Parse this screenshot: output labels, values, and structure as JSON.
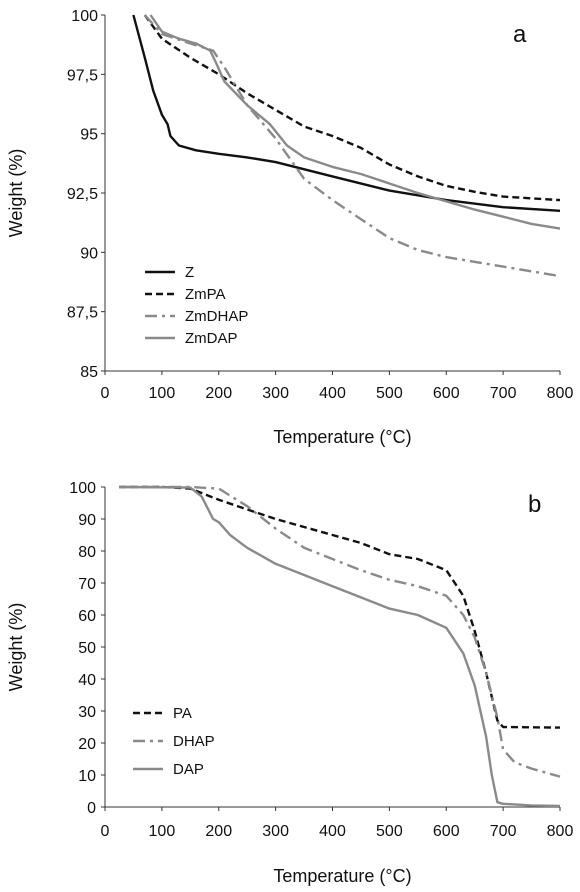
{
  "chart_data": [
    {
      "type": "line",
      "panel_label": "a",
      "xlabel": "Temperature (°C)",
      "ylabel": "Weight (%)",
      "xlim": [
        0,
        800
      ],
      "ylim": [
        85,
        100
      ],
      "x_ticks": [
        "0",
        "100",
        "200",
        "300",
        "400",
        "500",
        "600",
        "700",
        "800"
      ],
      "y_ticks": [
        "85",
        "87,5",
        "90",
        "92,5",
        "95",
        "97,5",
        "100"
      ],
      "grid": false,
      "legend_position": "bottom-left",
      "series": [
        {
          "name": "Z",
          "color": "#111111",
          "dash": "solid",
          "points": [
            [
              50,
              100
            ],
            [
              70,
              98.2
            ],
            [
              85,
              96.8
            ],
            [
              100,
              95.8
            ],
            [
              110,
              95.4
            ],
            [
              115,
              94.9
            ],
            [
              130,
              94.5
            ],
            [
              160,
              94.3
            ],
            [
              200,
              94.15
            ],
            [
              250,
              94.0
            ],
            [
              300,
              93.8
            ],
            [
              400,
              93.2
            ],
            [
              500,
              92.6
            ],
            [
              600,
              92.2
            ],
            [
              700,
              91.9
            ],
            [
              800,
              91.75
            ]
          ]
        },
        {
          "name": "ZmPA",
          "color": "#111111",
          "dash": "dash",
          "points": [
            [
              70,
              100
            ],
            [
              100,
              99.0
            ],
            [
              150,
              98.2
            ],
            [
              200,
              97.5
            ],
            [
              250,
              96.7
            ],
            [
              300,
              96.0
            ],
            [
              350,
              95.3
            ],
            [
              400,
              94.9
            ],
            [
              450,
              94.4
            ],
            [
              500,
              93.7
            ],
            [
              550,
              93.2
            ],
            [
              600,
              92.8
            ],
            [
              650,
              92.55
            ],
            [
              700,
              92.35
            ],
            [
              800,
              92.2
            ]
          ]
        },
        {
          "name": "ZmDHAP",
          "color": "#8a8a8a",
          "dash": "dashdot",
          "points": [
            [
              70,
              100
            ],
            [
              100,
              99.2
            ],
            [
              150,
              98.8
            ],
            [
              190,
              98.5
            ],
            [
              210,
              97.8
            ],
            [
              250,
              96.2
            ],
            [
              300,
              94.8
            ],
            [
              350,
              93.1
            ],
            [
              400,
              92.2
            ],
            [
              450,
              91.4
            ],
            [
              500,
              90.6
            ],
            [
              550,
              90.1
            ],
            [
              600,
              89.8
            ],
            [
              700,
              89.4
            ],
            [
              800,
              89.0
            ]
          ]
        },
        {
          "name": "ZmDAP",
          "color": "#8a8a8a",
          "dash": "solid",
          "points": [
            [
              80,
              100
            ],
            [
              100,
              99.3
            ],
            [
              130,
              99.0
            ],
            [
              160,
              98.8
            ],
            [
              185,
              98.5
            ],
            [
              195,
              98.0
            ],
            [
              210,
              97.2
            ],
            [
              250,
              96.2
            ],
            [
              290,
              95.4
            ],
            [
              320,
              94.5
            ],
            [
              350,
              94.0
            ],
            [
              400,
              93.6
            ],
            [
              450,
              93.3
            ],
            [
              500,
              92.9
            ],
            [
              550,
              92.5
            ],
            [
              600,
              92.15
            ],
            [
              650,
              91.8
            ],
            [
              700,
              91.5
            ],
            [
              750,
              91.2
            ],
            [
              800,
              91.0
            ]
          ]
        }
      ]
    },
    {
      "type": "line",
      "panel_label": "b",
      "xlabel": "Temperature (°C)",
      "ylabel": "Weight (%)",
      "xlim": [
        0,
        800
      ],
      "ylim": [
        0,
        100
      ],
      "x_ticks": [
        "0",
        "100",
        "200",
        "300",
        "400",
        "500",
        "600",
        "700",
        "800"
      ],
      "y_ticks": [
        "0",
        "10",
        "20",
        "30",
        "40",
        "50",
        "60",
        "70",
        "80",
        "90",
        "100"
      ],
      "grid": false,
      "legend_position": "bottom-left",
      "series": [
        {
          "name": "PA",
          "color": "#111111",
          "dash": "dash",
          "points": [
            [
              25,
              100
            ],
            [
              100,
              100
            ],
            [
              150,
              99.5
            ],
            [
              200,
              96
            ],
            [
              250,
              93
            ],
            [
              300,
              90
            ],
            [
              350,
              87.5
            ],
            [
              400,
              85
            ],
            [
              450,
              82.5
            ],
            [
              500,
              79
            ],
            [
              550,
              77.5
            ],
            [
              600,
              74
            ],
            [
              630,
              66
            ],
            [
              650,
              55
            ],
            [
              670,
              42
            ],
            [
              690,
              27
            ],
            [
              700,
              25
            ],
            [
              750,
              24.9
            ],
            [
              800,
              24.8
            ]
          ]
        },
        {
          "name": "DHAP",
          "color": "#8a8a8a",
          "dash": "dashdot",
          "points": [
            [
              25,
              100
            ],
            [
              150,
              100
            ],
            [
              200,
              99.5
            ],
            [
              250,
              94
            ],
            [
              300,
              87
            ],
            [
              350,
              81
            ],
            [
              400,
              77.5
            ],
            [
              450,
              74
            ],
            [
              500,
              71
            ],
            [
              550,
              69
            ],
            [
              600,
              66
            ],
            [
              630,
              60
            ],
            [
              650,
              53
            ],
            [
              670,
              42
            ],
            [
              690,
              28
            ],
            [
              700,
              18
            ],
            [
              720,
              14
            ],
            [
              750,
              12
            ],
            [
              800,
              9.5
            ]
          ]
        },
        {
          "name": "DAP",
          "color": "#8a8a8a",
          "dash": "solid",
          "points": [
            [
              25,
              100
            ],
            [
              150,
              99.8
            ],
            [
              170,
              97
            ],
            [
              190,
              90
            ],
            [
              200,
              89
            ],
            [
              220,
              85
            ],
            [
              250,
              81
            ],
            [
              300,
              76
            ],
            [
              350,
              72.5
            ],
            [
              400,
              69
            ],
            [
              450,
              65.5
            ],
            [
              500,
              62
            ],
            [
              550,
              60
            ],
            [
              600,
              56
            ],
            [
              630,
              48
            ],
            [
              650,
              38
            ],
            [
              670,
              22
            ],
            [
              680,
              10
            ],
            [
              690,
              1.5
            ],
            [
              700,
              1
            ],
            [
              750,
              0.5
            ],
            [
              800,
              0.3
            ]
          ]
        }
      ]
    }
  ]
}
